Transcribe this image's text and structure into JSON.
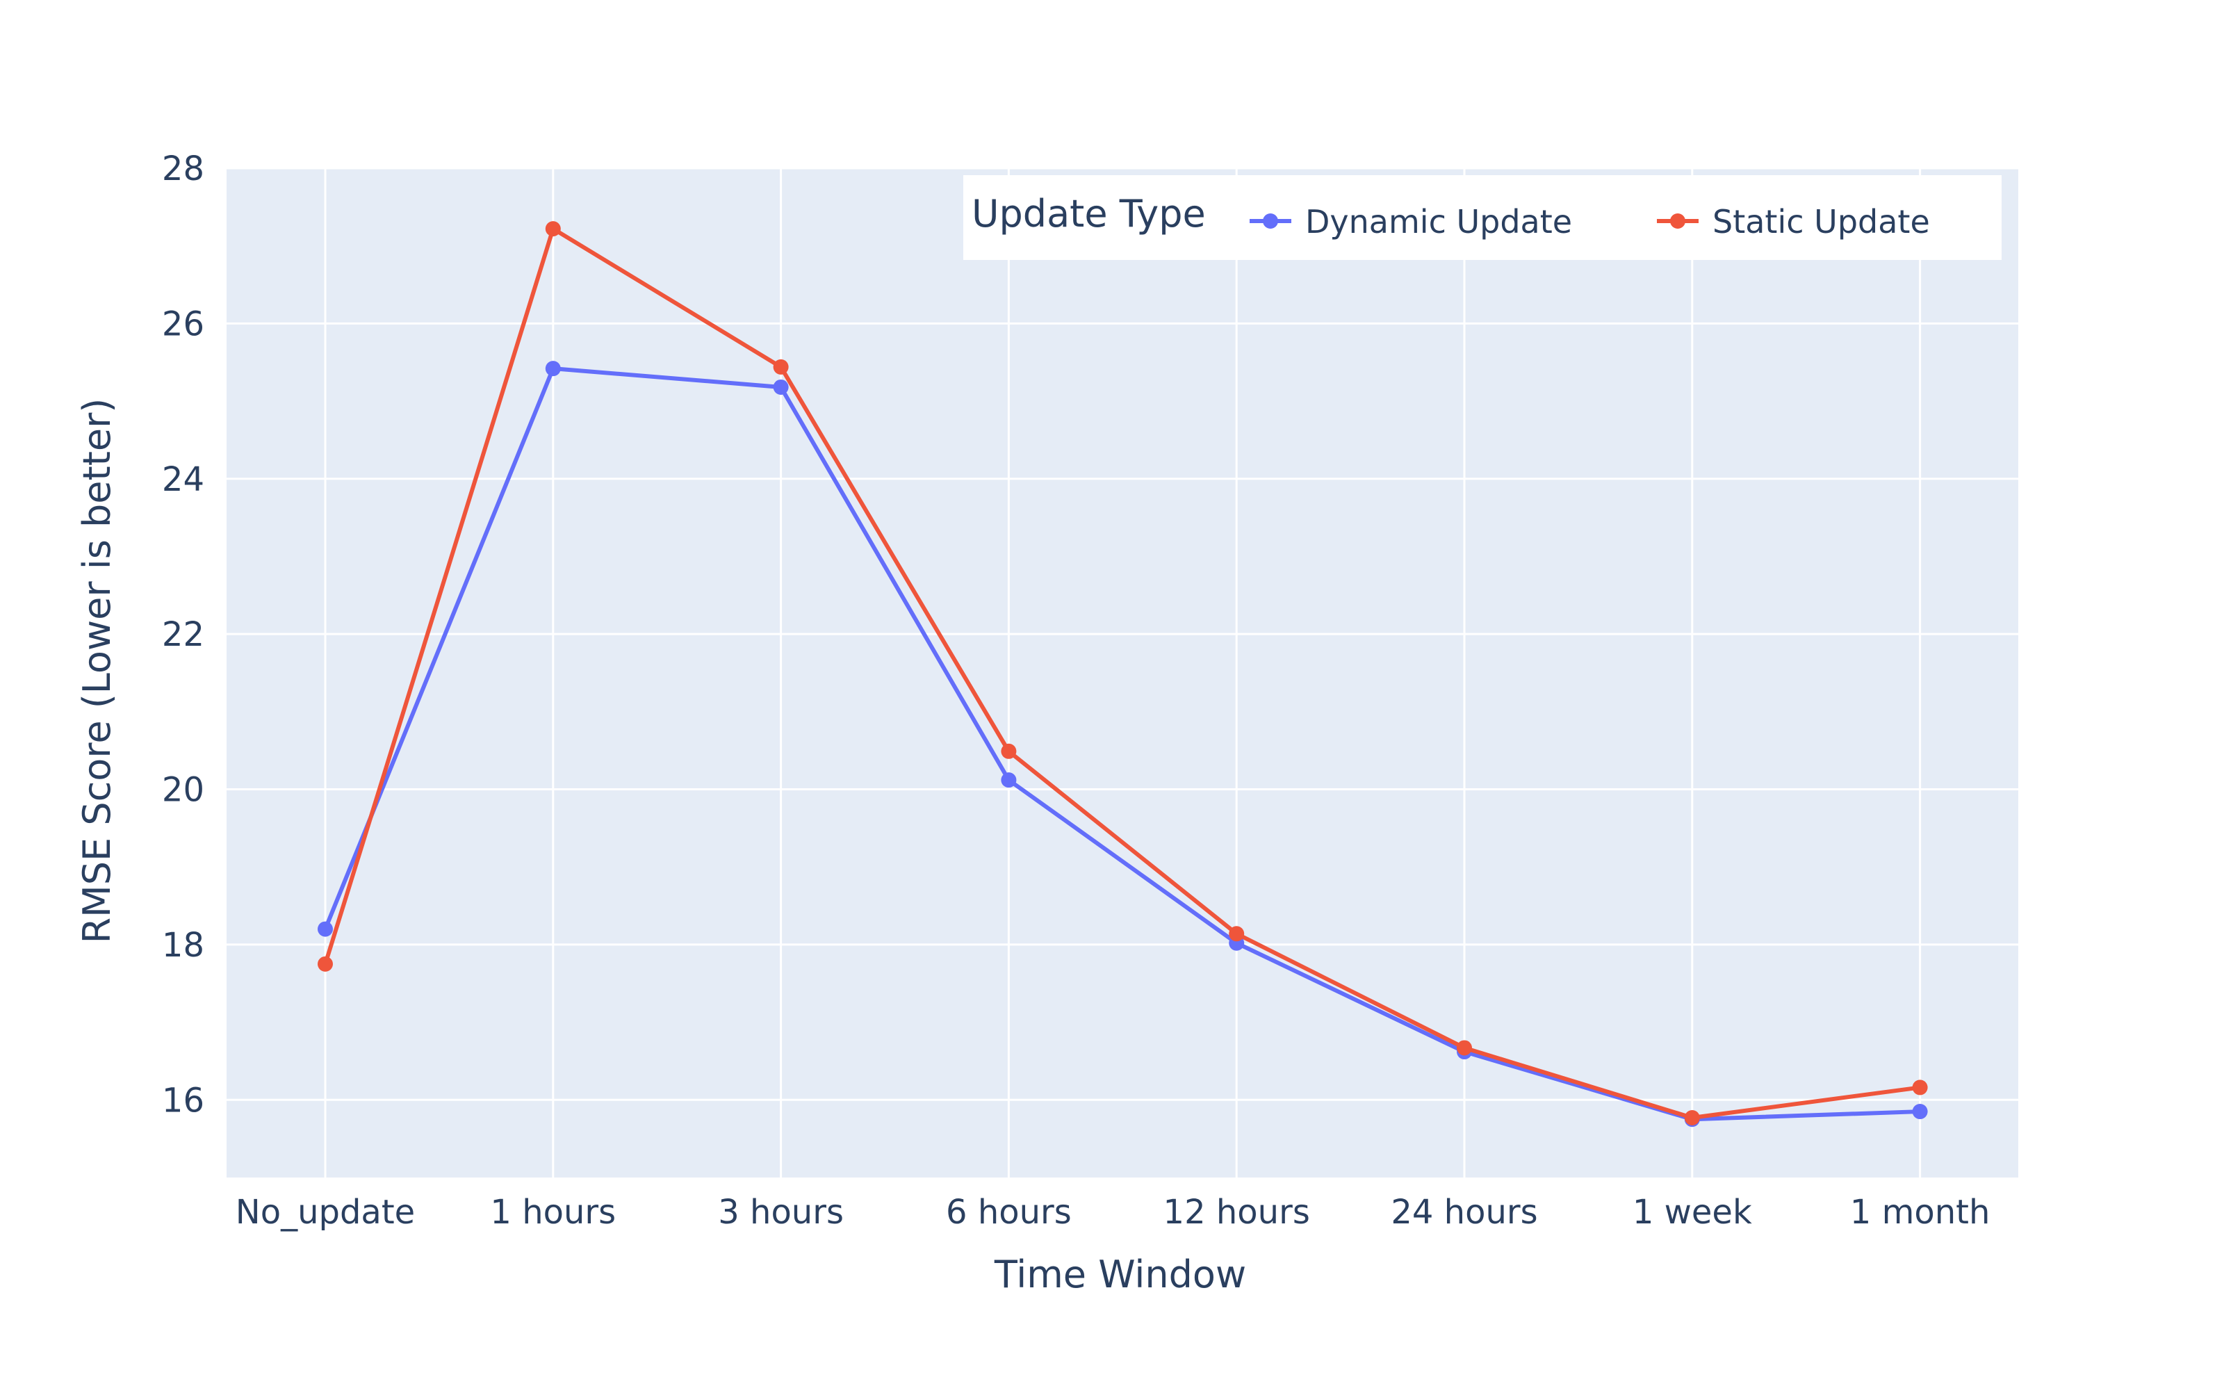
{
  "chart_data": {
    "type": "line",
    "title": "",
    "xlabel": "Time Window",
    "ylabel": "RMSE Score (Lower is better)",
    "categories": [
      "No_update",
      "1 hours",
      "3 hours",
      "6 hours",
      "12 hours",
      "24 hours",
      "1 week",
      "1 month"
    ],
    "ylim": [
      15,
      28
    ],
    "yticks": [
      16,
      18,
      20,
      22,
      24,
      26,
      28
    ],
    "grid": true,
    "legend": {
      "title": "Update Type",
      "position": "top-right",
      "orientation": "horizontal"
    },
    "series": [
      {
        "name": "Dynamic Update",
        "color": "#636efa",
        "values": [
          18.2,
          25.42,
          25.18,
          20.12,
          18.02,
          16.62,
          15.75,
          15.85
        ]
      },
      {
        "name": "Static Update",
        "color": "#ef553b",
        "values": [
          17.75,
          27.22,
          25.44,
          20.49,
          18.14,
          16.67,
          15.77,
          16.16
        ]
      }
    ],
    "colors": {
      "plot_background": "#e5ecf6",
      "grid": "#ffffff",
      "text": "#2a3f5f"
    }
  }
}
